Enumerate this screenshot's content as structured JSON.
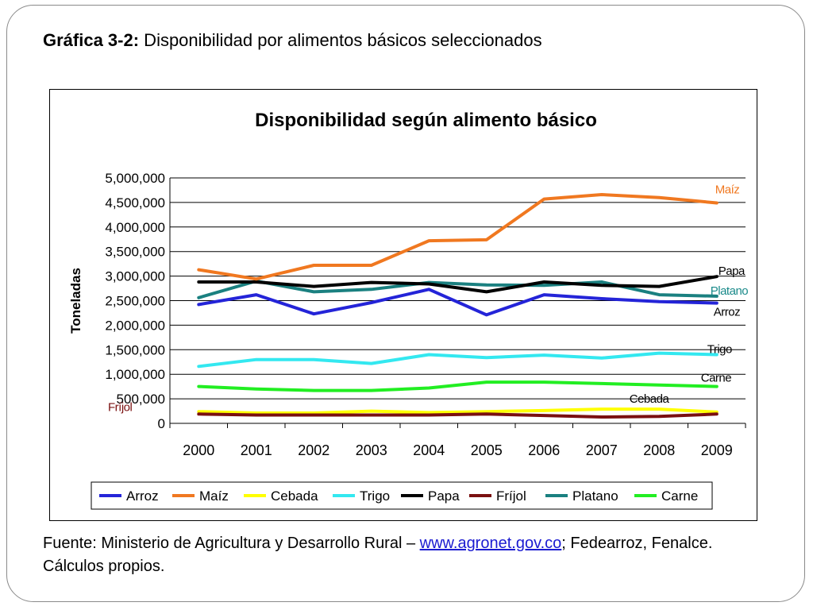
{
  "heading": {
    "prefix": "Gráfica 3-2:",
    "text": " Disponibilidad por alimentos básicos seleccionados"
  },
  "footer": {
    "line1_prefix": "Fuente: Ministerio de Agricultura y Desarrollo Rural – ",
    "link": "www.agronet.gov.co",
    "line1_suffix": "; Fedearroz, Fenalce.",
    "line2": "Cálculos propios."
  },
  "chart_data": {
    "type": "line",
    "title": "Disponibilidad según alimento básico",
    "ylabel": "Toneladas",
    "xlabel": "",
    "x": [
      "2000",
      "2001",
      "2002",
      "2003",
      "2004",
      "2005",
      "2006",
      "2007",
      "2008",
      "2009"
    ],
    "ylim": [
      0,
      5000000
    ],
    "yticks": [
      0,
      500000,
      1000000,
      1500000,
      2000000,
      2500000,
      3000000,
      3500000,
      4000000,
      4500000,
      5000000
    ],
    "ytick_labels": [
      "0",
      "500,000",
      "1,000,000",
      "1,500,000",
      "2,000,000",
      "2,500,000",
      "3,000,000",
      "3,500,000",
      "4,000,000",
      "4,500,000",
      "5,000,000"
    ],
    "grid": "horizontal",
    "legend_position": "bottom",
    "series": [
      {
        "name": "Arroz",
        "color": "#2424d8",
        "end_label": "Arroz",
        "label_color": "#000000",
        "values": [
          2420000,
          2620000,
          2230000,
          2460000,
          2730000,
          2210000,
          2620000,
          2540000,
          2480000,
          2450000
        ]
      },
      {
        "name": "Maíz",
        "color": "#f07820",
        "end_label": "Maíz",
        "label_color": "#f07820",
        "values": [
          3130000,
          2940000,
          3220000,
          3220000,
          3720000,
          3740000,
          4570000,
          4660000,
          4600000,
          4490000
        ]
      },
      {
        "name": "Cebada",
        "color": "#ffff00",
        "end_label": "Cebada",
        "label_color": "#000000",
        "values": [
          240000,
          210000,
          210000,
          250000,
          220000,
          240000,
          260000,
          290000,
          290000,
          230000
        ]
      },
      {
        "name": "Trigo",
        "color": "#33e8f0",
        "end_label": "Trigo",
        "label_color": "#000000",
        "values": [
          1160000,
          1300000,
          1300000,
          1220000,
          1400000,
          1340000,
          1390000,
          1330000,
          1430000,
          1400000
        ]
      },
      {
        "name": "Papa",
        "color": "#000000",
        "end_label": "Papa",
        "label_color": "#000000",
        "values": [
          2880000,
          2880000,
          2790000,
          2870000,
          2840000,
          2680000,
          2880000,
          2810000,
          2790000,
          2990000
        ]
      },
      {
        "name": "Fríjol",
        "color": "#7a1010",
        "end_label": "Fríjol",
        "label_color": "#7a1010",
        "values": [
          190000,
          170000,
          170000,
          170000,
          170000,
          190000,
          160000,
          130000,
          140000,
          190000
        ]
      },
      {
        "name": "Platano",
        "color": "#1a8080",
        "end_label": "Platano",
        "label_color": "#1a8a8a",
        "values": [
          2560000,
          2900000,
          2680000,
          2730000,
          2870000,
          2820000,
          2810000,
          2880000,
          2620000,
          2590000
        ]
      },
      {
        "name": "Carne",
        "color": "#22ee22",
        "end_label": "Carne",
        "label_color": "#000000",
        "values": [
          750000,
          700000,
          670000,
          670000,
          720000,
          840000,
          840000,
          810000,
          780000,
          750000
        ]
      }
    ]
  }
}
